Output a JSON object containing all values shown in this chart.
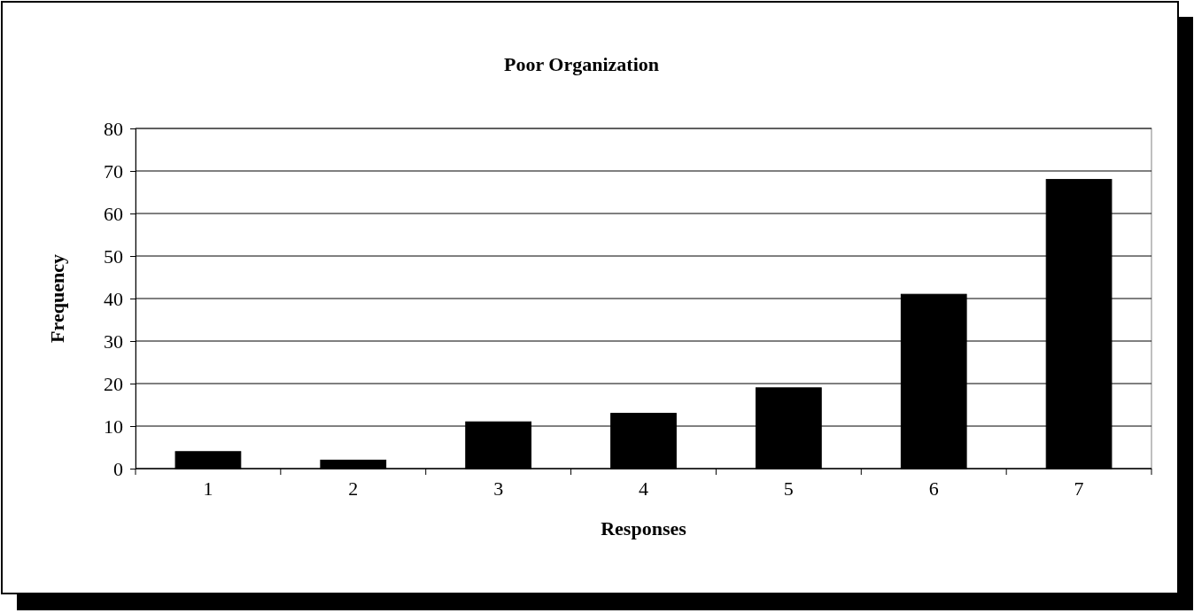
{
  "chart_data": {
    "type": "bar",
    "title": "Poor Organization",
    "xlabel": "Responses",
    "ylabel": "Frequency",
    "categories": [
      "1",
      "2",
      "3",
      "4",
      "5",
      "6",
      "7"
    ],
    "values": [
      4,
      2,
      11,
      13,
      19,
      41,
      68
    ],
    "color": "#000000",
    "ylim": [
      0,
      80
    ],
    "yticks": [
      0,
      10,
      20,
      30,
      40,
      50,
      60,
      70,
      80
    ],
    "grid": "y"
  }
}
